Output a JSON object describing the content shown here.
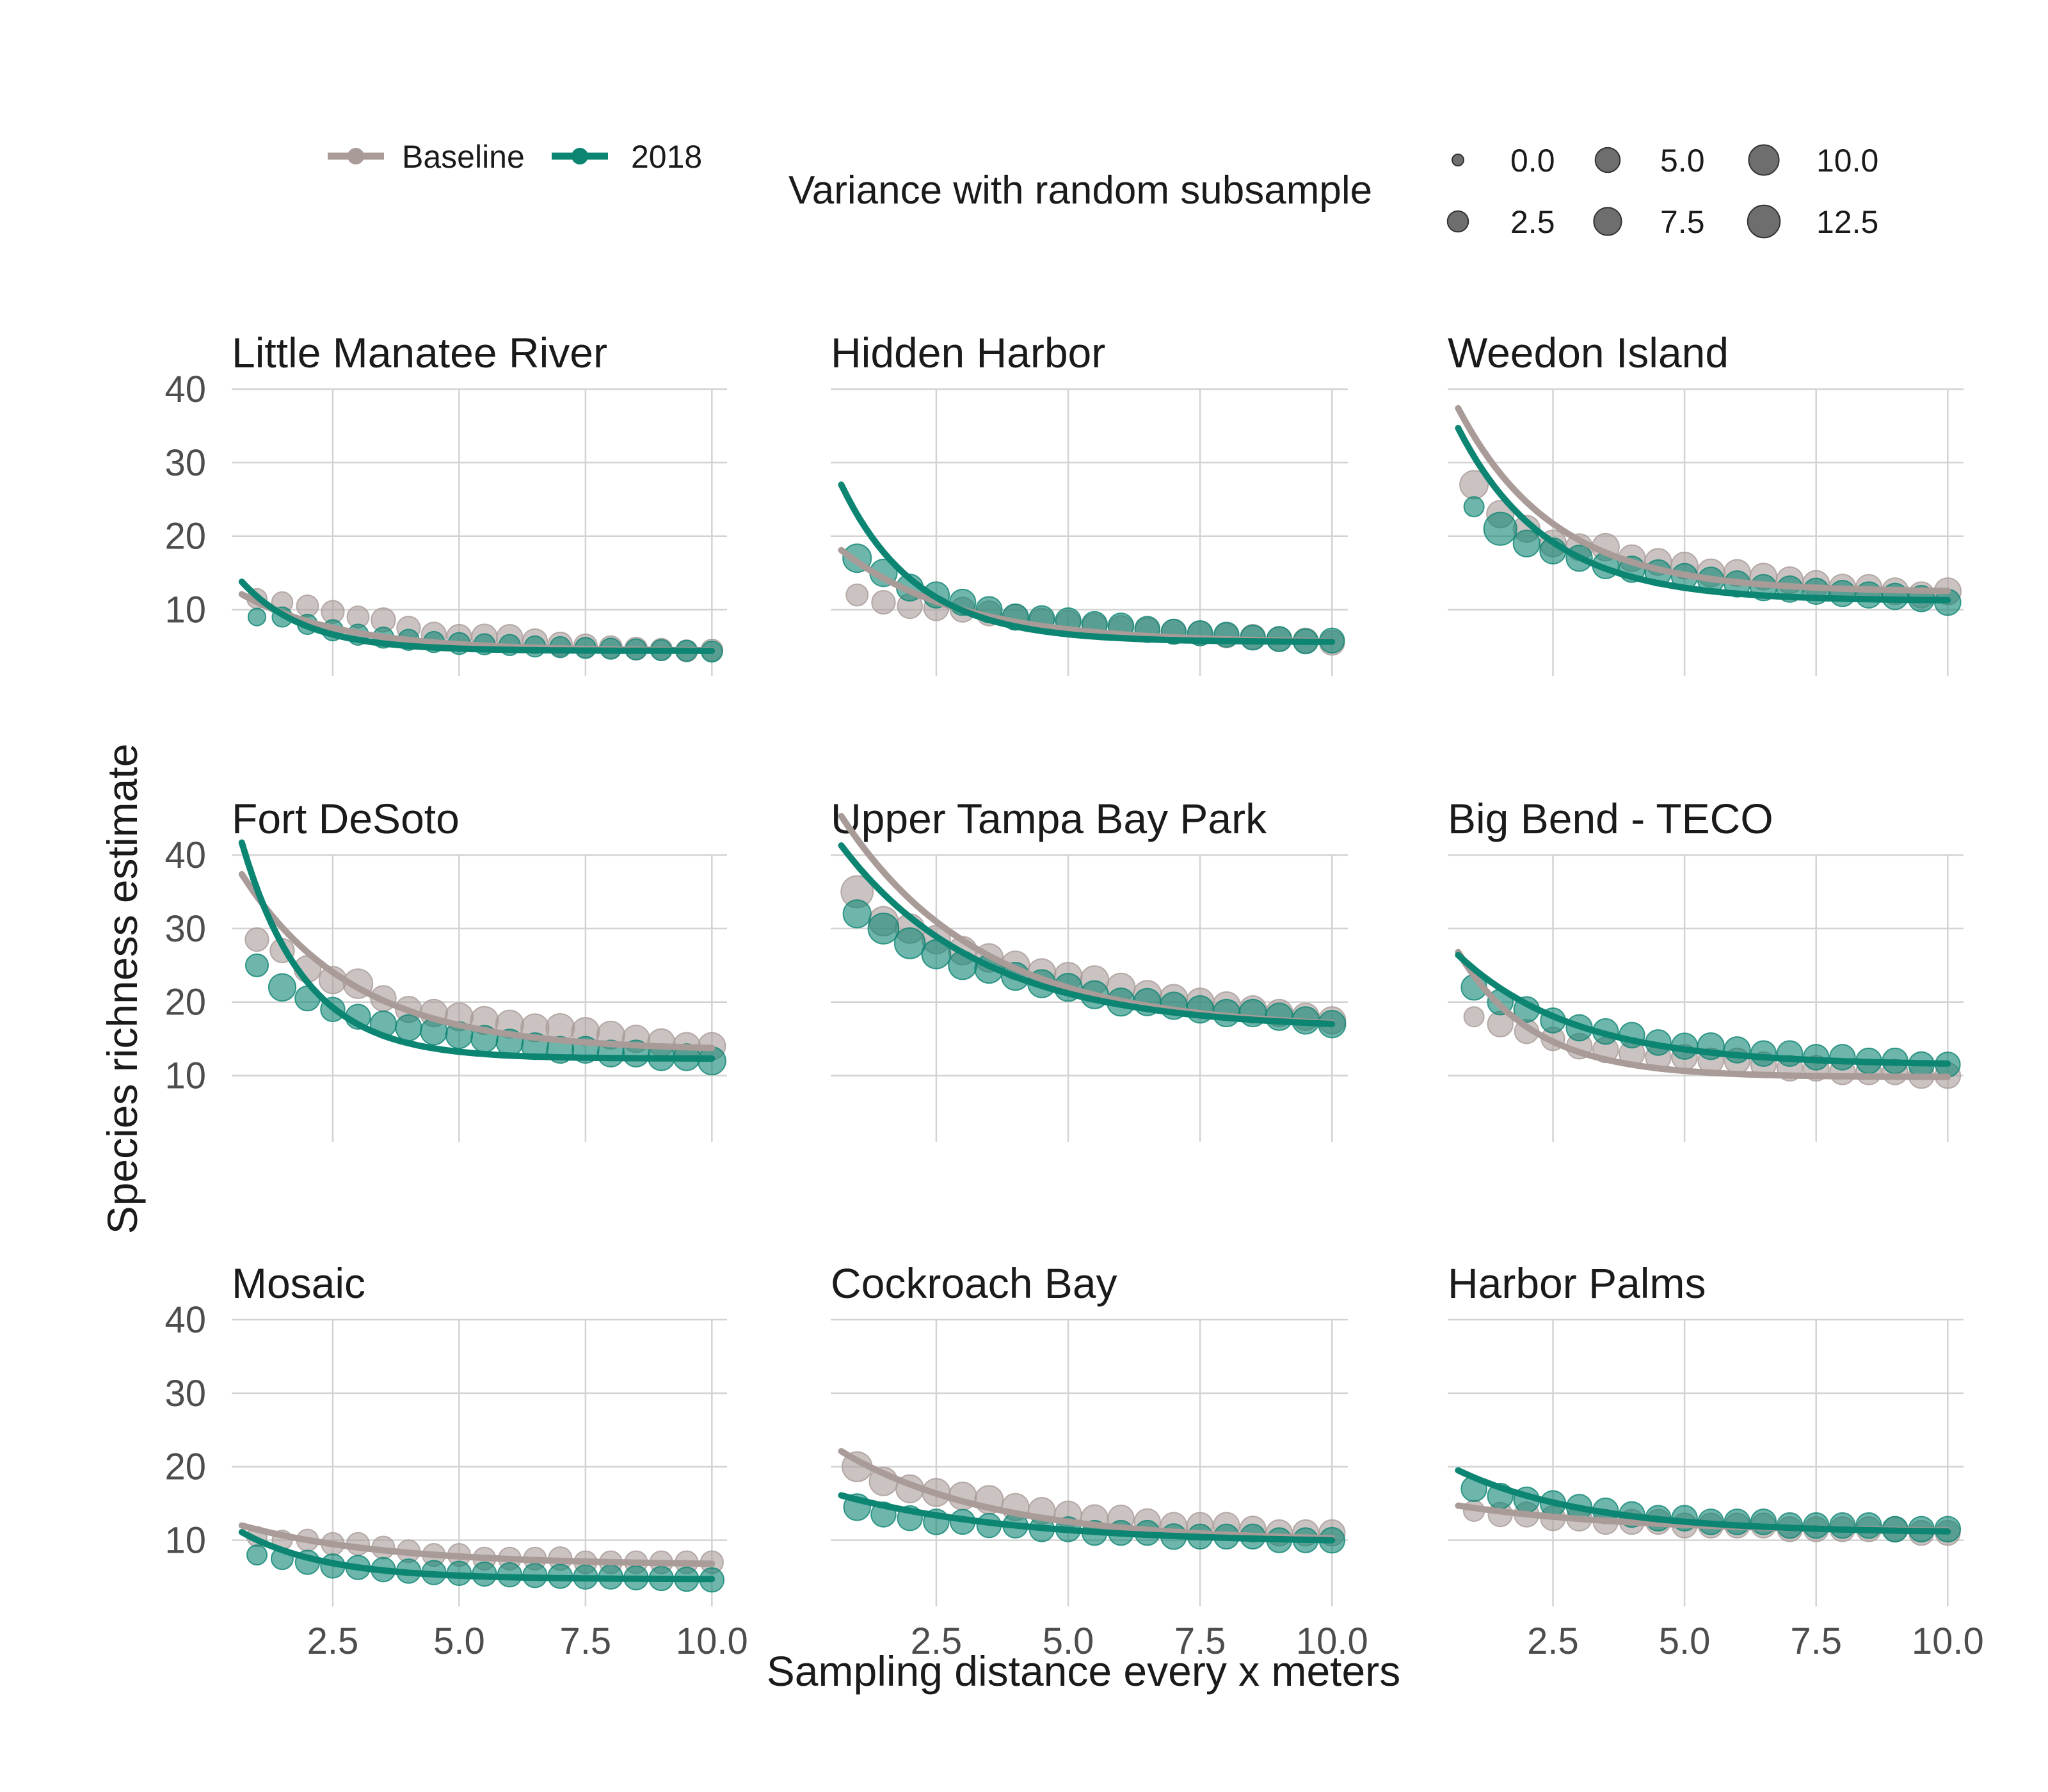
{
  "colors": {
    "baseline": "#a89b98",
    "y2018": "#0d8573",
    "size_legend": "#555555"
  },
  "legend": {
    "baseline_label": "Baseline",
    "y2018_label": "2018",
    "size_title": "Variance with random subsample",
    "size_entries": [
      {
        "label": "0.0",
        "value": 0.0
      },
      {
        "label": "5.0",
        "value": 5.0
      },
      {
        "label": "10.0",
        "value": 10.0
      },
      {
        "label": "2.5",
        "value": 2.5
      },
      {
        "label": "7.5",
        "value": 7.5
      },
      {
        "label": "12.5",
        "value": 12.5
      }
    ]
  },
  "chart_data": {
    "type": "scatter",
    "xlabel": "Sampling distance every x meters",
    "ylabel": "Species richness estimate",
    "xlim": [
      0.5,
      10.3
    ],
    "ylim": [
      1,
      40
    ],
    "x_ticks": [
      2.5,
      5.0,
      7.5,
      10.0
    ],
    "x_tick_labels": [
      "2.5",
      "5.0",
      "7.5",
      "10.0"
    ],
    "y_ticks": [
      10,
      20,
      30,
      40
    ],
    "y_tick_labels": [
      "10",
      "20",
      "30",
      "40"
    ],
    "x": [
      1.0,
      1.5,
      2.0,
      2.5,
      3.0,
      3.5,
      4.0,
      4.5,
      5.0,
      5.5,
      6.0,
      6.5,
      7.0,
      7.5,
      8.0,
      8.5,
      9.0,
      9.5,
      10.0
    ],
    "series_names": [
      "Baseline",
      "2018"
    ],
    "size_variable": "Variance with random subsample",
    "facets": [
      {
        "title": "Little Manatee River",
        "baseline": {
          "values": [
            11.5,
            11.0,
            10.5,
            9.7,
            9.0,
            8.6,
            7.5,
            6.6,
            6.3,
            6.3,
            6.2,
            5.7,
            5.3,
            5.1,
            4.9,
            4.7,
            4.6,
            4.4,
            4.5
          ],
          "variance": [
            2.0,
            2.5,
            3.0,
            3.5,
            3.0,
            4.5,
            4.0,
            5.0,
            5.0,
            5.5,
            6.0,
            5.0,
            4.5,
            4.0,
            3.5,
            3.5,
            3.0,
            3.0,
            3.0
          ],
          "fit": {
            "a": 7.7,
            "b": 0.5,
            "c": 4.4
          }
        },
        "y2018": {
          "values": [
            9.0,
            9.0,
            8.0,
            7.2,
            6.6,
            6.2,
            5.9,
            5.6,
            5.4,
            5.3,
            5.2,
            5.0,
            4.9,
            4.8,
            4.7,
            4.6,
            4.5,
            4.4,
            4.3
          ],
          "variance": [
            1.0,
            2.0,
            2.0,
            2.5,
            2.5,
            2.5,
            2.5,
            2.5,
            3.0,
            2.5,
            2.5,
            2.5,
            2.5,
            2.5,
            2.5,
            2.5,
            2.5,
            2.5,
            2.5
          ],
          "fit": {
            "a": 9.4,
            "b": 0.8,
            "c": 4.4
          }
        }
      },
      {
        "title": "Hidden Harbor",
        "baseline": {
          "values": [
            12.0,
            11.0,
            10.5,
            10.2,
            10.0,
            9.5,
            9.0,
            8.5,
            8.2,
            7.8,
            7.5,
            7.2,
            7.0,
            6.8,
            6.5,
            6.3,
            6.0,
            5.8,
            5.5
          ],
          "variance": [
            3.0,
            4.0,
            5.0,
            5.0,
            5.0,
            5.0,
            5.5,
            5.0,
            5.0,
            5.0,
            5.0,
            5.0,
            5.0,
            5.0,
            5.0,
            5.0,
            5.0,
            5.0,
            5.0
          ],
          "fit": {
            "a": 12.6,
            "b": 0.45,
            "c": 5.5
          }
        },
        "y2018": {
          "values": [
            17.0,
            15.0,
            13.0,
            12.0,
            11.0,
            10.0,
            9.0,
            8.8,
            8.5,
            8.0,
            7.8,
            7.4,
            7.0,
            6.8,
            6.6,
            6.2,
            6.0,
            5.7,
            5.8
          ],
          "variance": [
            8.0,
            7.0,
            6.5,
            6.0,
            6.0,
            6.0,
            6.0,
            5.5,
            5.5,
            5.5,
            5.5,
            5.0,
            5.0,
            5.0,
            5.0,
            5.0,
            5.0,
            5.0,
            5.0
          ],
          "fit": {
            "a": 21.4,
            "b": 0.7,
            "c": 5.6
          }
        }
      },
      {
        "title": "Weedon Island",
        "baseline": {
          "values": [
            27.0,
            23.0,
            21.0,
            19.0,
            18.5,
            18.5,
            17.0,
            16.5,
            16.0,
            15.0,
            15.0,
            14.5,
            14.0,
            13.5,
            13.0,
            13.0,
            12.5,
            12.0,
            12.5
          ],
          "variance": [
            8.0,
            7.0,
            6.5,
            6.5,
            6.5,
            7.0,
            6.5,
            6.5,
            6.5,
            7.5,
            6.5,
            6.5,
            6.5,
            6.5,
            6.5,
            6.0,
            6.5,
            6.0,
            6.5
          ],
          "fit": {
            "a": 25.0,
            "b": 0.55,
            "c": 12.4
          }
        },
        "y2018": {
          "values": [
            24.0,
            21.0,
            19.0,
            18.0,
            17.0,
            16.0,
            15.5,
            15.0,
            14.5,
            14.0,
            13.5,
            13.0,
            12.8,
            12.5,
            12.2,
            12.0,
            11.8,
            11.5,
            11.0
          ],
          "variance": [
            2.0,
            13.0,
            6.5,
            6.0,
            6.0,
            6.0,
            6.0,
            6.0,
            6.0,
            6.0,
            6.0,
            6.0,
            6.0,
            6.0,
            6.0,
            6.0,
            6.0,
            6.0,
            6.0
          ],
          "fit": {
            "a": 23.5,
            "b": 0.6,
            "c": 11.2
          }
        }
      },
      {
        "title": "Fort DeSoto",
        "baseline": {
          "values": [
            28.5,
            27.0,
            24.5,
            23.0,
            22.5,
            20.5,
            19.0,
            18.5,
            18.0,
            17.5,
            17.0,
            16.5,
            16.5,
            16.0,
            15.5,
            15.0,
            14.5,
            14.0,
            14.0
          ],
          "variance": [
            4.0,
            4.5,
            6.5,
            7.0,
            9.0,
            5.5,
            6.0,
            7.0,
            7.5,
            7.5,
            7.5,
            7.5,
            8.0,
            7.5,
            7.5,
            7.0,
            7.0,
            7.0,
            7.0
          ],
          "fit": {
            "a": 24.0,
            "b": 0.45,
            "c": 13.4
          }
        },
        "y2018": {
          "values": [
            25.0,
            22.0,
            20.5,
            19.0,
            18.0,
            17.0,
            16.5,
            16.0,
            15.5,
            15.0,
            14.5,
            14.0,
            13.5,
            13.5,
            13.0,
            13.0,
            12.5,
            12.5,
            12.0
          ],
          "variance": [
            3.5,
            7.0,
            5.0,
            4.5,
            5.0,
            6.0,
            6.0,
            6.5,
            6.5,
            6.5,
            6.5,
            6.5,
            6.5,
            6.5,
            6.5,
            6.5,
            6.5,
            6.5,
            7.5
          ],
          "fit": {
            "a": 29.4,
            "b": 0.8,
            "c": 12.3
          }
        }
      },
      {
        "title": "Upper Tampa Bay Park",
        "baseline": {
          "values": [
            35.0,
            31.0,
            30.0,
            28.5,
            27.0,
            26.0,
            25.0,
            24.0,
            23.5,
            23.0,
            22.0,
            21.0,
            20.5,
            20.0,
            19.5,
            19.0,
            18.5,
            18.0,
            17.5
          ],
          "variance": [
            12.0,
            9.0,
            9.0,
            8.0,
            8.0,
            8.0,
            8.0,
            7.5,
            7.5,
            8.0,
            8.0,
            8.0,
            7.5,
            7.5,
            7.5,
            7.0,
            7.0,
            7.0,
            7.0
          ],
          "fit": {
            "a": 29.0,
            "b": 0.38,
            "c": 16.3
          }
        },
        "y2018": {
          "values": [
            32.0,
            30.0,
            28.0,
            26.5,
            25.0,
            24.5,
            23.5,
            22.5,
            22.0,
            21.0,
            20.0,
            20.0,
            19.5,
            19.0,
            18.5,
            18.5,
            18.0,
            17.5,
            17.0
          ],
          "variance": [
            7.5,
            10.5,
            10.5,
            8.5,
            8.0,
            8.0,
            7.5,
            7.5,
            7.5,
            7.5,
            7.5,
            7.0,
            7.0,
            7.0,
            7.0,
            7.0,
            7.0,
            7.0,
            7.0
          ],
          "fit": {
            "a": 25.0,
            "b": 0.38,
            "c": 16.3
          }
        }
      },
      {
        "title": "Big Bend - TECO",
        "baseline": {
          "values": [
            18.0,
            17.0,
            16.0,
            15.0,
            14.0,
            13.5,
            13.0,
            12.5,
            12.5,
            12.0,
            12.0,
            11.5,
            11.0,
            11.0,
            10.5,
            10.5,
            10.5,
            10.0,
            10.0
          ],
          "variance": [
            2.0,
            5.5,
            4.5,
            4.0,
            5.5,
            5.5,
            5.5,
            5.5,
            5.5,
            5.5,
            5.5,
            5.5,
            5.5,
            5.5,
            5.5,
            5.5,
            5.5,
            5.5,
            5.5
          ],
          "fit": {
            "a": 17.0,
            "b": 0.7,
            "c": 9.8
          }
        },
        "y2018": {
          "values": [
            22.0,
            20.0,
            19.0,
            17.5,
            16.5,
            16.0,
            15.5,
            14.5,
            14.0,
            14.0,
            13.5,
            13.0,
            13.0,
            12.5,
            12.5,
            12.0,
            12.0,
            11.5,
            11.5
          ],
          "variance": [
            5.5,
            5.5,
            5.5,
            5.0,
            6.0,
            5.5,
            5.5,
            5.5,
            6.0,
            6.5,
            6.0,
            5.5,
            5.5,
            5.5,
            5.5,
            5.5,
            5.5,
            5.5,
            5.0
          ],
          "fit": {
            "a": 15.0,
            "b": 0.45,
            "c": 11.4
          }
        }
      },
      {
        "title": "Mosaic",
        "baseline": {
          "values": [
            10.5,
            10.0,
            10.0,
            9.5,
            9.5,
            9.0,
            8.5,
            8.0,
            8.0,
            7.5,
            7.5,
            7.5,
            7.5,
            7.0,
            7.0,
            7.0,
            7.0,
            7.0,
            7.0
          ],
          "variance": [
            2.0,
            2.0,
            3.0,
            3.5,
            3.5,
            3.5,
            3.5,
            3.5,
            3.5,
            3.5,
            3.5,
            3.5,
            4.0,
            3.5,
            3.5,
            3.5,
            3.5,
            3.5,
            3.5
          ],
          "fit": {
            "a": 5.4,
            "b": 0.35,
            "c": 6.6
          }
        },
        "y2018": {
          "values": [
            8.0,
            7.5,
            7.0,
            6.5,
            6.3,
            6.0,
            5.8,
            5.6,
            5.5,
            5.4,
            5.3,
            5.2,
            5.1,
            5.0,
            5.0,
            4.9,
            4.8,
            4.7,
            4.6
          ],
          "variance": [
            2.0,
            3.0,
            4.5,
            4.5,
            4.5,
            4.5,
            4.5,
            4.5,
            4.5,
            4.5,
            4.5,
            4.5,
            4.5,
            4.5,
            4.5,
            4.5,
            4.5,
            4.5,
            4.5
          ],
          "fit": {
            "a": 6.4,
            "b": 0.6,
            "c": 4.7
          }
        }
      },
      {
        "title": "Cockroach Bay",
        "baseline": {
          "values": [
            20.0,
            18.0,
            17.0,
            16.5,
            16.0,
            15.5,
            14.5,
            14.0,
            13.5,
            13.0,
            13.0,
            12.5,
            12.0,
            12.0,
            12.0,
            11.5,
            11.0,
            11.0,
            11.0
          ],
          "variance": [
            9.5,
            8.0,
            7.5,
            7.5,
            7.5,
            8.0,
            7.0,
            6.5,
            6.5,
            6.5,
            6.0,
            6.0,
            6.0,
            6.0,
            6.0,
            6.0,
            6.0,
            6.0,
            6.0
          ],
          "fit": {
            "a": 12.3,
            "b": 0.35,
            "c": 9.8
          }
        },
        "y2018": {
          "values": [
            14.5,
            13.5,
            13.0,
            12.5,
            12.5,
            12.0,
            12.0,
            11.5,
            11.5,
            11.0,
            11.0,
            11.0,
            10.5,
            10.5,
            10.5,
            10.5,
            10.0,
            10.0,
            10.0
          ],
          "variance": [
            6.5,
            5.0,
            5.0,
            5.5,
            5.0,
            4.5,
            5.0,
            5.0,
            5.0,
            5.0,
            5.0,
            5.0,
            5.5,
            5.0,
            5.0,
            5.0,
            5.0,
            5.0,
            5.5
          ],
          "fit": {
            "a": 6.5,
            "b": 0.3,
            "c": 9.6
          }
        }
      },
      {
        "title": "Harbor Palms",
        "baseline": {
          "values": [
            14.0,
            13.5,
            13.5,
            13.0,
            13.0,
            12.5,
            12.5,
            12.5,
            12.0,
            12.0,
            12.0,
            12.0,
            11.5,
            11.5,
            11.5,
            11.5,
            11.5,
            11.0,
            11.0
          ],
          "variance": [
            2.5,
            4.5,
            5.0,
            5.0,
            5.5,
            5.0,
            5.0,
            5.0,
            5.0,
            5.0,
            5.0,
            5.0,
            5.0,
            5.0,
            5.0,
            5.0,
            5.0,
            5.0,
            5.0
          ],
          "fit": {
            "a": 3.6,
            "b": 0.3,
            "c": 11.1
          }
        },
        "y2018": {
          "values": [
            17.0,
            16.0,
            15.5,
            15.0,
            14.5,
            14.0,
            13.5,
            13.0,
            13.0,
            12.5,
            12.5,
            12.5,
            12.0,
            12.0,
            12.0,
            12.0,
            11.5,
            11.5,
            11.5
          ],
          "variance": [
            5.5,
            5.5,
            5.5,
            5.5,
            5.5,
            5.5,
            5.5,
            5.5,
            5.5,
            5.5,
            5.5,
            5.5,
            5.5,
            5.5,
            5.5,
            5.5,
            5.5,
            5.5,
            5.5
          ],
          "fit": {
            "a": 8.5,
            "b": 0.4,
            "c": 11.0
          }
        }
      }
    ]
  }
}
